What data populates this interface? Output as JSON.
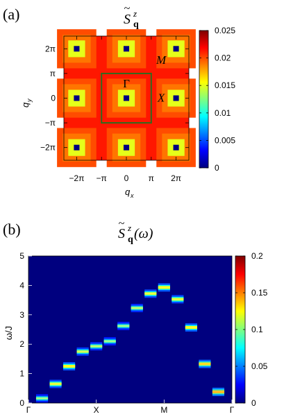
{
  "chart_data": [
    {
      "type": "heatmap",
      "panel_label": "(a)",
      "title_main": "S",
      "title_sub": "q",
      "title_sup": "z",
      "xlabel_main": "q",
      "xlabel_sub": "x",
      "ylabel_main": "q",
      "ylabel_sub": "y",
      "x_ticks": [
        "−2π",
        "−π",
        "0",
        "π",
        "2π"
      ],
      "y_ticks": [
        "2π",
        "π",
        "0",
        "−π",
        "−2π"
      ],
      "xlim": [
        -7.9,
        7.9
      ],
      "ylim": [
        -7.9,
        7.9
      ],
      "background_value": 0.0213,
      "peaks": [
        {
          "qx": -6.2832,
          "qy": 6.2832,
          "value": 0
        },
        {
          "qx": 0,
          "qy": 6.2832,
          "value": 0
        },
        {
          "qx": 6.2832,
          "qy": 6.2832,
          "value": 0
        },
        {
          "qx": -6.2832,
          "qy": 0,
          "value": 0
        },
        {
          "qx": 0,
          "qy": 0,
          "value": 0
        },
        {
          "qx": 6.2832,
          "qy": 0,
          "value": 0
        },
        {
          "qx": -6.2832,
          "qy": -6.2832,
          "value": 0
        },
        {
          "qx": 0,
          "qy": -6.2832,
          "value": 0
        },
        {
          "qx": 6.2832,
          "qy": -6.2832,
          "value": 0
        }
      ],
      "brillouin_zone": {
        "half_width": 3.1416,
        "color": "#2e6b1e"
      },
      "point_labels": [
        {
          "label": "Γ",
          "qx": 0,
          "qy": 1.9
        },
        {
          "label": "M",
          "qx": 4.4,
          "qy": 4.9
        },
        {
          "label": "X",
          "qx": 4.4,
          "qy": 0.1
        }
      ],
      "colorbar": {
        "min": 0,
        "max": 0.025,
        "ticks": [
          "0.025",
          "0.02",
          "0.015",
          "0.01",
          "0.005",
          "0"
        ]
      }
    },
    {
      "type": "heatmap",
      "panel_label": "(b)",
      "title_main": "S",
      "title_sub": "q",
      "title_sup": "z",
      "title_arg": "(ω)",
      "ylabel": "ω/J",
      "x_ticks": [
        "Γ",
        "X",
        "M",
        "Γ"
      ],
      "y_ticks": [
        "5",
        "4",
        "3",
        "2",
        "1",
        "0"
      ],
      "ylim": [
        0,
        5
      ],
      "background_value": 0,
      "modes": [
        {
          "k": 1,
          "omega": 0.16,
          "intensity": 0.1
        },
        {
          "k": 2,
          "omega": 0.65,
          "intensity": 0.13
        },
        {
          "k": 3,
          "omega": 1.25,
          "intensity": 0.14
        },
        {
          "k": 4,
          "omega": 1.75,
          "intensity": 0.12
        },
        {
          "k": 5,
          "omega": 1.93,
          "intensity": 0.11
        },
        {
          "k": 6,
          "omega": 2.1,
          "intensity": 0.1
        },
        {
          "k": 7,
          "omega": 2.62,
          "intensity": 0.1
        },
        {
          "k": 8,
          "omega": 3.23,
          "intensity": 0.11
        },
        {
          "k": 9,
          "omega": 3.72,
          "intensity": 0.13
        },
        {
          "k": 10,
          "omega": 3.93,
          "intensity": 0.14
        },
        {
          "k": 11,
          "omega": 3.53,
          "intensity": 0.13
        },
        {
          "k": 12,
          "omega": 2.57,
          "intensity": 0.14
        },
        {
          "k": 13,
          "omega": 1.33,
          "intensity": 0.15
        },
        {
          "k": 14,
          "omega": 0.38,
          "intensity": 0.16
        }
      ],
      "k_points": 15,
      "colorbar": {
        "min": 0,
        "max": 0.2,
        "ticks": [
          "0.2",
          "0.15",
          "0.1",
          "0.05",
          "0"
        ]
      }
    }
  ]
}
